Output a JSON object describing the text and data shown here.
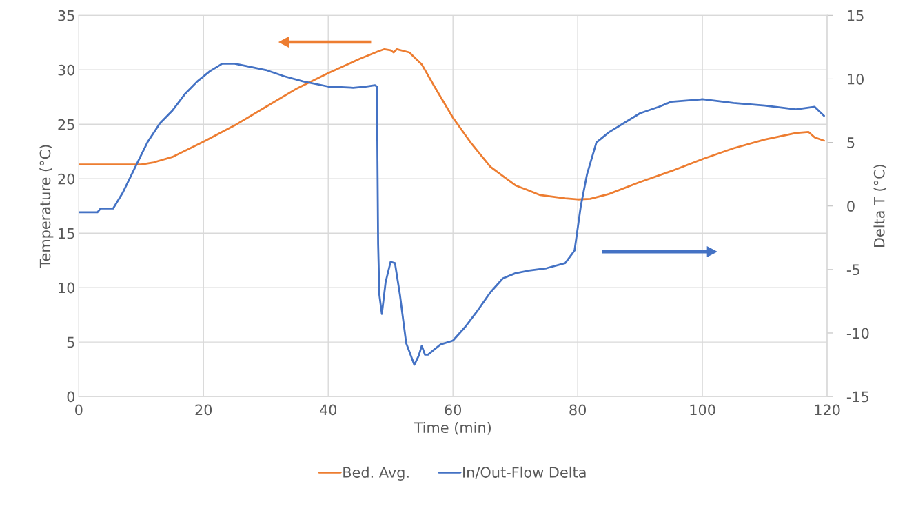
{
  "chart_data": {
    "type": "line",
    "xlabel": "Time (min)",
    "ylabel": "Temperature (°C)",
    "y2label": "Delta T (°C)",
    "xlim": [
      0,
      120
    ],
    "xticks": [
      0,
      20,
      40,
      60,
      80,
      100,
      120
    ],
    "ylim": [
      0,
      35
    ],
    "yticks": [
      0,
      5,
      10,
      15,
      20,
      25,
      30,
      35
    ],
    "y2lim": [
      -15,
      15
    ],
    "y2ticks": [
      -15,
      -10,
      -5,
      0,
      5,
      10,
      15
    ],
    "grid": true,
    "legend": "bottom",
    "marker": "none",
    "line_style": "solid",
    "series": [
      {
        "name": "Bed. Avg.",
        "color": "#ed7d31",
        "x": [
          0,
          10,
          12,
          15,
          20,
          25,
          30,
          35,
          40,
          45,
          48,
          49,
          50,
          50.5,
          51,
          53,
          55,
          57,
          60,
          63,
          66,
          70,
          74,
          78,
          80,
          82,
          85,
          90,
          95,
          100,
          105,
          110,
          115,
          117,
          118,
          119.5
        ],
        "values": [
          21.3,
          21.3,
          21.5,
          22,
          23.4,
          24.9,
          26.6,
          28.3,
          29.7,
          31,
          31.7,
          31.9,
          31.8,
          31.6,
          31.9,
          31.6,
          30.5,
          28.5,
          25.6,
          23.2,
          21.1,
          19.4,
          18.5,
          18.2,
          18.1,
          18.15,
          18.6,
          19.7,
          20.7,
          21.8,
          22.8,
          23.6,
          24.2,
          24.3,
          23.8,
          23.5
        ]
      },
      {
        "name": "In/Out-Flow Delta",
        "color": "#4472c4",
        "axis": "y2",
        "x": [
          0,
          3,
          3.5,
          5.5,
          7,
          8.5,
          9.5,
          11,
          13,
          15,
          17,
          19,
          21,
          23,
          25,
          28,
          30,
          33,
          36,
          40,
          44,
          46,
          47.5,
          47.8,
          48,
          48.2,
          48.6,
          49.2,
          50,
          50.7,
          51.5,
          52.5,
          53.8,
          54.5,
          55,
          55.5,
          56,
          58,
          60,
          62,
          64,
          66,
          68,
          70,
          72,
          75,
          78,
          79.5,
          80.5,
          81.5,
          83,
          85,
          88,
          90,
          93,
          95,
          100,
          105,
          110,
          115,
          118,
          119.5
        ],
        "values": [
          -0.5,
          -0.5,
          -0.2,
          -0.2,
          1,
          2.5,
          3.5,
          5,
          6.5,
          7.5,
          8.8,
          9.8,
          10.6,
          11.2,
          11.2,
          10.9,
          10.7,
          10.2,
          9.8,
          9.4,
          9.3,
          9.4,
          9.5,
          9.4,
          -3,
          -7,
          -8.5,
          -6,
          -4.4,
          -4.5,
          -7,
          -10.8,
          -12.5,
          -11.8,
          -11,
          -11.7,
          -11.7,
          -10.9,
          -10.6,
          -9.5,
          -8.2,
          -6.8,
          -5.7,
          -5.3,
          -5.1,
          -4.9,
          -4.5,
          -3.5,
          0,
          2.5,
          5,
          5.8,
          6.7,
          7.3,
          7.8,
          8.2,
          8.4,
          8.1,
          7.9,
          7.6,
          7.8,
          7.1
        ]
      }
    ]
  }
}
